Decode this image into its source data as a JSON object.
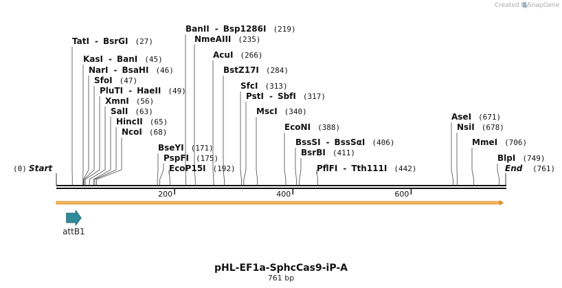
{
  "watermark": {
    "prefix": "Created by",
    "brand": "SnapGene"
  },
  "sequence": {
    "length": 761,
    "start_label": "Start",
    "start_pos": "(0)",
    "end_label": "End",
    "end_pos": "(761)",
    "ticks": [
      200,
      400,
      600
    ],
    "track_color": "#f0a030"
  },
  "title": "pHL-EF1a-SphcCas9-iP-A",
  "subtitle": "761 bp",
  "features": [
    {
      "name": "attB1",
      "start": 17,
      "end": 42,
      "color": "#2f8a9a"
    }
  ],
  "sites": [
    {
      "name": "TatI",
      "name2": "BsrGI",
      "pos": "(27)",
      "bp": 27
    },
    {
      "name": "KasI",
      "name2": "BanI",
      "pos": "(45)",
      "bp": 45
    },
    {
      "name": "NarI",
      "name2": "BsaHI",
      "pos": "(46)",
      "bp": 46
    },
    {
      "name": "SfoI",
      "name2": "",
      "pos": "(47)",
      "bp": 47
    },
    {
      "name": "PluTI",
      "name2": "HaeII",
      "pos": "(49)",
      "bp": 49
    },
    {
      "name": "XmnI",
      "name2": "",
      "pos": "(56)",
      "bp": 56
    },
    {
      "name": "SalI",
      "name2": "",
      "pos": "(63)",
      "bp": 63
    },
    {
      "name": "HincII",
      "name2": "",
      "pos": "(65)",
      "bp": 65
    },
    {
      "name": "NcoI",
      "name2": "",
      "pos": "(68)",
      "bp": 68
    },
    {
      "name": "BseYI",
      "name2": "",
      "pos": "(171)",
      "bp": 171
    },
    {
      "name": "PspFI",
      "name2": "",
      "pos": "(175)",
      "bp": 175
    },
    {
      "name": "EcoP15I",
      "name2": "",
      "pos": "(192)",
      "bp": 192
    },
    {
      "name": "BanII",
      "name2": "Bsp1286I",
      "pos": "(219)",
      "bp": 219
    },
    {
      "name": "NmeAIII",
      "name2": "",
      "pos": "(235)",
      "bp": 235
    },
    {
      "name": "AcuI",
      "name2": "",
      "pos": "(266)",
      "bp": 266
    },
    {
      "name": "BstZ17I",
      "name2": "",
      "pos": "(284)",
      "bp": 284
    },
    {
      "name": "SfcI",
      "name2": "",
      "pos": "(313)",
      "bp": 313
    },
    {
      "name": "PstI",
      "name2": "SbfI",
      "pos": "(317)",
      "bp": 317
    },
    {
      "name": "MscI",
      "name2": "",
      "pos": "(340)",
      "bp": 340
    },
    {
      "name": "EcoNI",
      "name2": "",
      "pos": "(388)",
      "bp": 388
    },
    {
      "name": "BssSI",
      "name2": "BssSαI",
      "pos": "(406)",
      "bp": 406
    },
    {
      "name": "BsrBI",
      "name2": "",
      "pos": "(411)",
      "bp": 411
    },
    {
      "name": "PflFI",
      "name2": "Tth111I",
      "pos": "(442)",
      "bp": 442
    },
    {
      "name": "AseI",
      "name2": "",
      "pos": "(671)",
      "bp": 671
    },
    {
      "name": "NsiI",
      "name2": "",
      "pos": "(678)",
      "bp": 678
    },
    {
      "name": "MmeI",
      "name2": "",
      "pos": "(706)",
      "bp": 706
    },
    {
      "name": "BlpI",
      "name2": "",
      "pos": "(749)",
      "bp": 749
    }
  ]
}
